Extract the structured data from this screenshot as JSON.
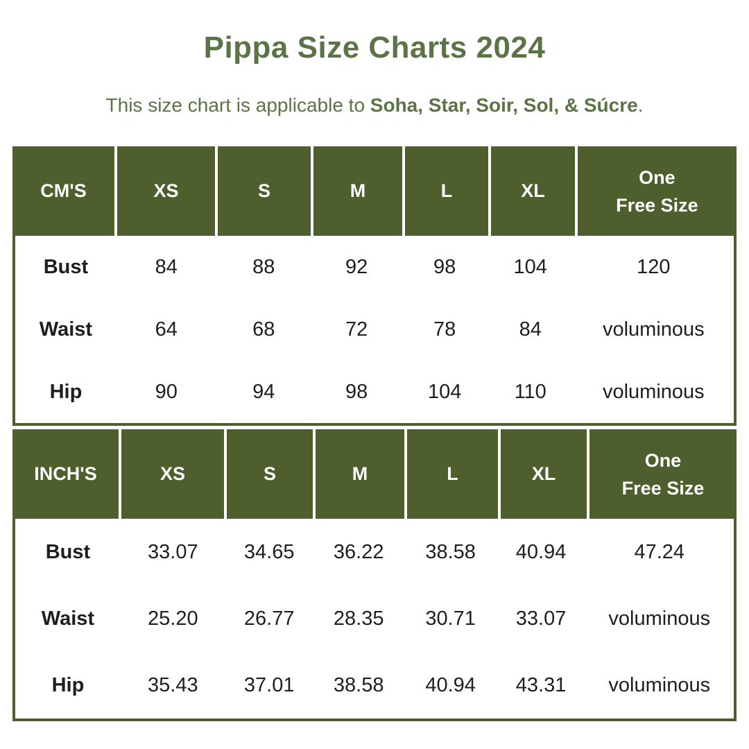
{
  "page": {
    "title": "Pippa Size Charts 2024",
    "subtitle_prefix": "This size chart is applicable to ",
    "subtitle_emphasis": "Soha, Star, Soir, Sol, & Súcre",
    "subtitle_suffix": "."
  },
  "colors": {
    "table_green": "#4e5f2d",
    "heading_green": "#5b7346",
    "header_text": "#ffffff",
    "body_text": "#1e1e1e",
    "background": "#ffffff"
  },
  "tables": [
    {
      "unit_label": "CM'S",
      "size_columns": [
        "XS",
        "S",
        "M",
        "L",
        "XL"
      ],
      "free_size_label": {
        "line1": "One",
        "line2": "Free Size"
      },
      "rows": [
        {
          "label": "Bust",
          "values": [
            "84",
            "88",
            "92",
            "98",
            "104",
            "120"
          ]
        },
        {
          "label": "Waist",
          "values": [
            "64",
            "68",
            "72",
            "78",
            "84",
            "voluminous"
          ]
        },
        {
          "label": "Hip",
          "values": [
            "90",
            "94",
            "98",
            "104",
            "110",
            "voluminous"
          ]
        }
      ]
    },
    {
      "unit_label": "INCH'S",
      "size_columns": [
        "XS",
        "S",
        "M",
        "L",
        "XL"
      ],
      "free_size_label": {
        "line1": "One",
        "line2": "Free Size"
      },
      "rows": [
        {
          "label": "Bust",
          "values": [
            "33.07",
            "34.65",
            "36.22",
            "38.58",
            "40.94",
            "47.24"
          ]
        },
        {
          "label": "Waist",
          "values": [
            "25.20",
            "26.77",
            "28.35",
            "30.71",
            "33.07",
            "voluminous"
          ]
        },
        {
          "label": "Hip",
          "values": [
            "35.43",
            "37.01",
            "38.58",
            "40.94",
            "43.31",
            "voluminous"
          ]
        }
      ]
    }
  ]
}
